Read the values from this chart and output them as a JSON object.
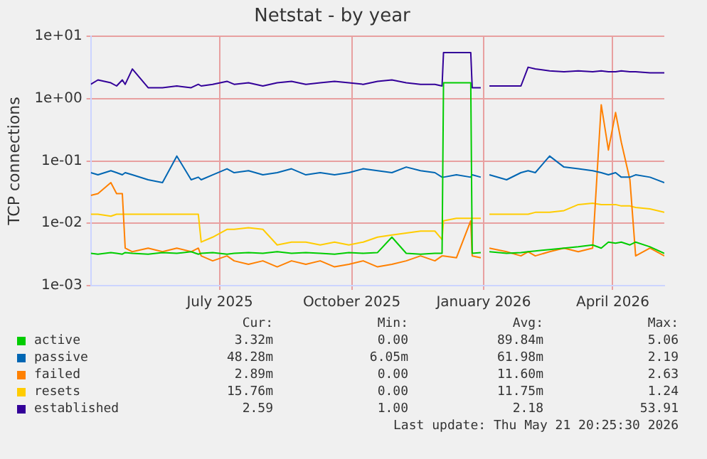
{
  "chart_data": {
    "type": "line",
    "title": "Netstat - by year",
    "ylabel": "TCP connections",
    "x": [
      "2025-04-16",
      "2025-04-21",
      "2025-04-30",
      "2025-05-04",
      "2025-05-08",
      "2025-05-10",
      "2025-05-15",
      "2025-05-26",
      "2025-06-05",
      "2025-06-15",
      "2025-06-25",
      "2025-06-30",
      "2025-07-02",
      "2025-07-10",
      "2025-07-20",
      "2025-07-25",
      "2025-08-04",
      "2025-08-14",
      "2025-08-24",
      "2025-09-03",
      "2025-09-13",
      "2025-09-23",
      "2025-10-03",
      "2025-10-13",
      "2025-10-23",
      "2025-11-02",
      "2025-11-12",
      "2025-11-22",
      "2025-12-02",
      "2025-12-12",
      "2025-12-17",
      "2025-12-18",
      "2025-12-27",
      "2026-01-06",
      "2026-01-07",
      "2026-01-13",
      "2026-01-16",
      "2026-01-19",
      "2026-01-31",
      "2026-02-10",
      "2026-02-15",
      "2026-02-20",
      "2026-03-02",
      "2026-03-12",
      "2026-03-22",
      "2026-04-01",
      "2026-04-07",
      "2026-04-12",
      "2026-04-17",
      "2026-04-21",
      "2026-04-27",
      "2026-05-01",
      "2026-05-11",
      "2026-05-21"
    ],
    "series": [
      {
        "name": "active",
        "color": "#00cc00",
        "values": [
          0.0033,
          0.0032,
          0.0034,
          0.0033,
          0.0032,
          0.0034,
          0.0033,
          0.0032,
          0.0034,
          0.0033,
          0.0035,
          0.0032,
          0.0033,
          0.0034,
          0.0032,
          0.0033,
          0.0034,
          0.0033,
          0.0035,
          0.0033,
          0.0034,
          0.0033,
          0.0032,
          0.0034,
          0.0033,
          0.0034,
          0.006,
          0.0033,
          0.0032,
          0.0033,
          0.0033,
          1.8,
          1.8,
          1.8,
          0.0033,
          0.0034,
          null,
          0.0035,
          0.0033,
          0.0034,
          0.0035,
          0.0036,
          0.0038,
          0.004,
          0.0042,
          0.0045,
          0.004,
          0.005,
          0.0048,
          0.005,
          0.0045,
          0.005,
          0.0042,
          0.0033
        ]
      },
      {
        "name": "passive",
        "color": "#0066b3",
        "values": [
          0.065,
          0.06,
          0.07,
          0.065,
          0.06,
          0.065,
          0.06,
          0.05,
          0.045,
          0.12,
          0.05,
          0.055,
          0.05,
          0.06,
          0.075,
          0.065,
          0.07,
          0.06,
          0.065,
          0.075,
          0.06,
          0.065,
          0.06,
          0.065,
          0.075,
          0.07,
          0.065,
          0.08,
          0.07,
          0.065,
          0.055,
          0.055,
          0.06,
          0.055,
          0.06,
          0.055,
          null,
          0.06,
          0.05,
          0.065,
          0.07,
          0.065,
          0.12,
          0.08,
          0.075,
          0.07,
          0.065,
          0.06,
          0.065,
          0.055,
          0.055,
          0.06,
          0.055,
          0.045
        ]
      },
      {
        "name": "failed",
        "color": "#ff8000",
        "values": [
          0.028,
          0.03,
          0.045,
          0.03,
          0.03,
          0.004,
          0.0035,
          0.004,
          0.0035,
          0.004,
          0.0035,
          0.004,
          0.003,
          0.0025,
          0.003,
          0.0025,
          0.0022,
          0.0025,
          0.002,
          0.0025,
          0.0022,
          0.0025,
          0.002,
          0.0022,
          0.0025,
          0.002,
          0.0022,
          0.0025,
          0.003,
          0.0025,
          0.003,
          0.003,
          0.0028,
          0.011,
          0.003,
          0.0028,
          null,
          0.004,
          0.0035,
          0.003,
          0.0035,
          0.003,
          0.0035,
          0.004,
          0.0035,
          0.004,
          0.8,
          0.15,
          0.6,
          0.2,
          0.05,
          0.003,
          0.004,
          0.003
        ]
      },
      {
        "name": "resets",
        "color": "#ffcc00",
        "values": [
          0.014,
          0.014,
          0.013,
          0.014,
          0.014,
          0.014,
          0.014,
          0.014,
          0.014,
          0.014,
          0.014,
          0.014,
          0.005,
          0.006,
          0.008,
          0.008,
          0.0085,
          0.008,
          0.0045,
          0.005,
          0.005,
          0.0045,
          0.005,
          0.0045,
          0.005,
          0.006,
          0.0065,
          0.007,
          0.0075,
          0.0075,
          0.0055,
          0.011,
          0.012,
          0.012,
          0.012,
          0.012,
          null,
          0.014,
          0.014,
          0.014,
          0.014,
          0.015,
          0.015,
          0.016,
          0.02,
          0.021,
          0.02,
          0.02,
          0.02,
          0.019,
          0.019,
          0.018,
          0.017,
          0.015
        ]
      },
      {
        "name": "established",
        "color": "#330099",
        "values": [
          1.7,
          2.0,
          1.8,
          1.6,
          2.0,
          1.7,
          3.0,
          1.5,
          1.5,
          1.6,
          1.5,
          1.7,
          1.6,
          1.7,
          1.9,
          1.7,
          1.8,
          1.6,
          1.8,
          1.9,
          1.7,
          1.8,
          1.9,
          1.8,
          1.7,
          1.9,
          2.0,
          1.8,
          1.7,
          1.7,
          1.6,
          5.5,
          5.5,
          5.5,
          1.5,
          1.5,
          null,
          1.6,
          1.6,
          1.6,
          3.2,
          3.0,
          2.8,
          2.7,
          2.8,
          2.7,
          2.8,
          2.7,
          2.7,
          2.8,
          2.7,
          2.7,
          2.6,
          2.6
        ]
      }
    ],
    "log": "y",
    "ylim": [
      0.001,
      10
    ],
    "yticks": [
      {
        "value": 0.001,
        "label": "1e-03"
      },
      {
        "value": 0.01,
        "label": "1e-02"
      },
      {
        "value": 0.1,
        "label": "1e-01"
      },
      {
        "value": 1,
        "label": "1e+00"
      },
      {
        "value": 10,
        "label": "1e+01"
      }
    ],
    "xlim": [
      "2025-04-16",
      "2026-05-21"
    ],
    "xticks": [
      {
        "value": "2025-07-15",
        "label": "July 2025"
      },
      {
        "value": "2025-10-15",
        "label": "October 2025"
      },
      {
        "value": "2026-01-15",
        "label": "January 2026"
      },
      {
        "value": "2026-04-15",
        "label": "April 2026"
      }
    ],
    "grid": true,
    "legend": "bottom",
    "marker": "none",
    "line_style": "solid",
    "annotations": [
      "Cur:",
      "Min:",
      "Avg:",
      "Max:",
      "3.32m",
      "0.00",
      "89.84m",
      "5.06",
      "48.28m",
      "6.05m",
      "61.98m",
      "2.19",
      "2.89m",
      "0.00",
      "11.60m",
      "2.63",
      "15.76m",
      "0.00",
      "11.75m",
      "1.24",
      "2.59",
      "1.00",
      "2.18",
      "53.91",
      "Last update: Thu May 21 20:25:30 2026"
    ]
  }
}
